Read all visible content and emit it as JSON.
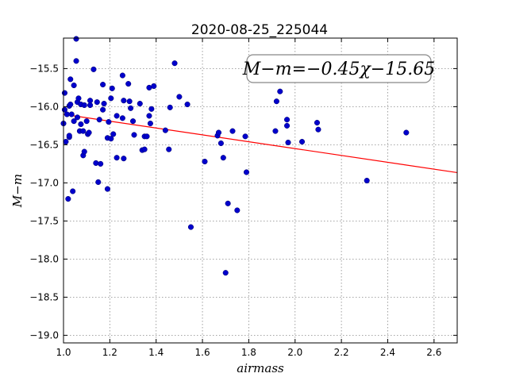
{
  "chart_data": {
    "type": "scatter",
    "title": "2020-08-25_225044",
    "xlabel": "airmass",
    "ylabel": "M−m",
    "xlim": [
      1.0,
      2.7
    ],
    "ylim": [
      -19.1,
      -15.1
    ],
    "y_inverted": false,
    "grid": true,
    "x_ticks": [
      1.0,
      1.2,
      1.4,
      1.6,
      1.8,
      2.0,
      2.2,
      2.4,
      2.6
    ],
    "x_tick_labels": [
      "1.0",
      "1.2",
      "1.4",
      "1.6",
      "1.8",
      "2.0",
      "2.2",
      "2.4",
      "2.6"
    ],
    "y_ticks": [
      -15.5,
      -16.0,
      -16.5,
      -17.0,
      -17.5,
      -18.0,
      -18.5,
      -19.0
    ],
    "y_tick_labels": [
      "−15.5",
      "−16.0",
      "−16.5",
      "−17.0",
      "−17.5",
      "−18.0",
      "−18.5",
      "−19.0"
    ],
    "annotation": "M−m=−0.45χ−15.65",
    "colors": {
      "points": "#0000cc",
      "fit_line": "#ff0000",
      "grid": "#888888"
    },
    "fit": {
      "slope": -0.45,
      "intercept": -15.65
    },
    "points": [
      {
        "x": 1.0,
        "y": -16.22
      },
      {
        "x": 1.005,
        "y": -16.04
      },
      {
        "x": 1.005,
        "y": -15.82
      },
      {
        "x": 1.01,
        "y": -16.46
      },
      {
        "x": 1.015,
        "y": -16.1
      },
      {
        "x": 1.02,
        "y": -17.21
      },
      {
        "x": 1.025,
        "y": -16.4
      },
      {
        "x": 1.025,
        "y": -16.38
      },
      {
        "x": 1.025,
        "y": -15.99
      },
      {
        "x": 1.03,
        "y": -15.97
      },
      {
        "x": 1.03,
        "y": -15.64
      },
      {
        "x": 1.035,
        "y": -16.1
      },
      {
        "x": 1.04,
        "y": -17.11
      },
      {
        "x": 1.045,
        "y": -16.19
      },
      {
        "x": 1.045,
        "y": -15.72
      },
      {
        "x": 1.055,
        "y": -15.4
      },
      {
        "x": 1.055,
        "y": -15.11
      },
      {
        "x": 1.06,
        "y": -16.14
      },
      {
        "x": 1.06,
        "y": -15.94
      },
      {
        "x": 1.065,
        "y": -15.89
      },
      {
        "x": 1.07,
        "y": -16.32
      },
      {
        "x": 1.075,
        "y": -16.23
      },
      {
        "x": 1.075,
        "y": -15.97
      },
      {
        "x": 1.085,
        "y": -16.32
      },
      {
        "x": 1.085,
        "y": -16.64
      },
      {
        "x": 1.09,
        "y": -16.59
      },
      {
        "x": 1.09,
        "y": -15.98
      },
      {
        "x": 1.1,
        "y": -16.19
      },
      {
        "x": 1.105,
        "y": -16.36
      },
      {
        "x": 1.11,
        "y": -16.34
      },
      {
        "x": 1.115,
        "y": -15.92
      },
      {
        "x": 1.115,
        "y": -15.98
      },
      {
        "x": 1.13,
        "y": -15.51
      },
      {
        "x": 1.14,
        "y": -16.74
      },
      {
        "x": 1.145,
        "y": -15.94
      },
      {
        "x": 1.15,
        "y": -16.99
      },
      {
        "x": 1.155,
        "y": -16.17
      },
      {
        "x": 1.16,
        "y": -16.75
      },
      {
        "x": 1.17,
        "y": -16.04
      },
      {
        "x": 1.17,
        "y": -15.71
      },
      {
        "x": 1.175,
        "y": -15.96
      },
      {
        "x": 1.19,
        "y": -16.41
      },
      {
        "x": 1.19,
        "y": -17.08
      },
      {
        "x": 1.195,
        "y": -16.2
      },
      {
        "x": 1.205,
        "y": -16.42
      },
      {
        "x": 1.205,
        "y": -15.89
      },
      {
        "x": 1.21,
        "y": -15.76
      },
      {
        "x": 1.215,
        "y": -16.36
      },
      {
        "x": 1.23,
        "y": -16.12
      },
      {
        "x": 1.23,
        "y": -16.67
      },
      {
        "x": 1.255,
        "y": -15.59
      },
      {
        "x": 1.255,
        "y": -16.15
      },
      {
        "x": 1.26,
        "y": -16.68
      },
      {
        "x": 1.26,
        "y": -15.92
      },
      {
        "x": 1.28,
        "y": -15.7
      },
      {
        "x": 1.285,
        "y": -15.93
      },
      {
        "x": 1.29,
        "y": -16.02
      },
      {
        "x": 1.3,
        "y": -16.19
      },
      {
        "x": 1.305,
        "y": -16.37
      },
      {
        "x": 1.33,
        "y": -15.96
      },
      {
        "x": 1.34,
        "y": -16.57
      },
      {
        "x": 1.35,
        "y": -16.39
      },
      {
        "x": 1.35,
        "y": -16.56
      },
      {
        "x": 1.36,
        "y": -16.39
      },
      {
        "x": 1.37,
        "y": -16.12
      },
      {
        "x": 1.37,
        "y": -15.75
      },
      {
        "x": 1.375,
        "y": -16.22
      },
      {
        "x": 1.38,
        "y": -16.03
      },
      {
        "x": 1.39,
        "y": -15.73
      },
      {
        "x": 1.44,
        "y": -16.31
      },
      {
        "x": 1.455,
        "y": -16.56
      },
      {
        "x": 1.46,
        "y": -16.01
      },
      {
        "x": 1.48,
        "y": -15.43
      },
      {
        "x": 1.5,
        "y": -15.87
      },
      {
        "x": 1.535,
        "y": -15.97
      },
      {
        "x": 1.55,
        "y": -17.58
      },
      {
        "x": 1.61,
        "y": -16.72
      },
      {
        "x": 1.665,
        "y": -16.38
      },
      {
        "x": 1.67,
        "y": -16.34
      },
      {
        "x": 1.68,
        "y": -16.48
      },
      {
        "x": 1.69,
        "y": -16.67
      },
      {
        "x": 1.7,
        "y": -18.18
      },
      {
        "x": 1.71,
        "y": -17.27
      },
      {
        "x": 1.73,
        "y": -16.32
      },
      {
        "x": 1.75,
        "y": -17.36
      },
      {
        "x": 1.785,
        "y": -16.39
      },
      {
        "x": 1.79,
        "y": -16.86
      },
      {
        "x": 1.915,
        "y": -16.32
      },
      {
        "x": 1.92,
        "y": -15.93
      },
      {
        "x": 1.935,
        "y": -15.8
      },
      {
        "x": 1.965,
        "y": -16.25
      },
      {
        "x": 1.965,
        "y": -16.17
      },
      {
        "x": 1.97,
        "y": -16.47
      },
      {
        "x": 2.03,
        "y": -16.46
      },
      {
        "x": 2.095,
        "y": -16.21
      },
      {
        "x": 2.1,
        "y": -16.3
      },
      {
        "x": 2.31,
        "y": -16.97
      },
      {
        "x": 2.48,
        "y": -16.34
      }
    ]
  }
}
